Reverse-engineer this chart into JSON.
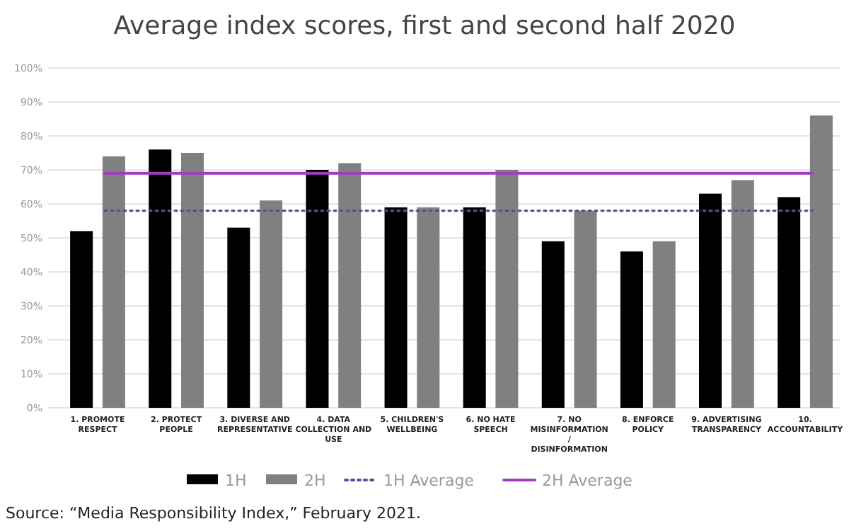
{
  "chart_data": {
    "type": "bar",
    "title": "Average index scores, first and second half 2020",
    "categories": [
      "1. PROMOTE RESPECT",
      "2. PROTECT PEOPLE",
      "3. DIVERSE AND REPRESENTATIVE",
      "4. DATA COLLECTION AND USE",
      "5. CHILDREN'S WELLBEING",
      "6. NO HATE SPEECH",
      "7. NO MISINFORMATION / DISINFORMATION",
      "8. ENFORCE POLICY",
      "9. ADVERTISING TRANSPARENCY",
      "10. ACCOUNTABILITY"
    ],
    "series": [
      {
        "name": "1H",
        "color": "#000000",
        "values": [
          52,
          76,
          53,
          70,
          59,
          59,
          49,
          46,
          63,
          62
        ]
      },
      {
        "name": "2H",
        "color": "#808080",
        "values": [
          74,
          75,
          61,
          72,
          59,
          70,
          58,
          49,
          67,
          86
        ]
      }
    ],
    "ref_lines": [
      {
        "axis": "y",
        "value": 58,
        "label": "1H Average",
        "color": "#5b4b9a",
        "line_style": "dotted"
      },
      {
        "axis": "y",
        "value": 69,
        "label": "2H Average",
        "color": "#a43cc0",
        "line_style": "solid"
      }
    ],
    "ylim": [
      0,
      100
    ],
    "yticks": [
      {
        "value": 0,
        "label": "0%"
      },
      {
        "value": 10,
        "label": "10%"
      },
      {
        "value": 20,
        "label": "20%"
      },
      {
        "value": 30,
        "label": "30%"
      },
      {
        "value": 40,
        "label": "40%"
      },
      {
        "value": 50,
        "label": "50%"
      },
      {
        "value": 60,
        "label": "60%"
      },
      {
        "value": 70,
        "label": "70%"
      },
      {
        "value": 80,
        "label": "80%"
      },
      {
        "value": 90,
        "label": "90%"
      },
      {
        "value": 100,
        "label": "100%"
      }
    ],
    "grid": "y",
    "legend": "bottom",
    "annotations": [
      "Source: “Media Responsibility Index,” February 2021."
    ]
  }
}
